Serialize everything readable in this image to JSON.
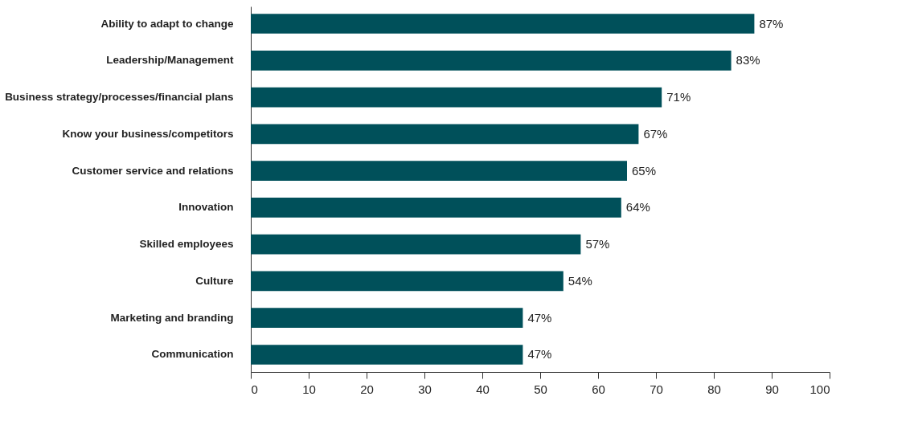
{
  "chart_data": {
    "type": "bar",
    "orientation": "horizontal",
    "categories": [
      "Ability to adapt to change",
      "Leadership/Management",
      "Business strategy/processes/financial plans",
      "Know your business/competitors",
      "Customer service and relations",
      "Innovation",
      "Skilled employees",
      "Culture",
      "Marketing and branding",
      "Communication"
    ],
    "values": [
      87,
      83,
      71,
      67,
      65,
      64,
      57,
      54,
      47,
      47
    ],
    "value_labels": [
      "87%",
      "83%",
      "71%",
      "67%",
      "65%",
      "64%",
      "57%",
      "54%",
      "47%",
      "47%"
    ],
    "color": "#00505a",
    "xlim": [
      0,
      100
    ],
    "xticks": [
      0,
      10,
      20,
      30,
      40,
      50,
      60,
      70,
      80,
      90,
      100
    ],
    "grid": false
  }
}
